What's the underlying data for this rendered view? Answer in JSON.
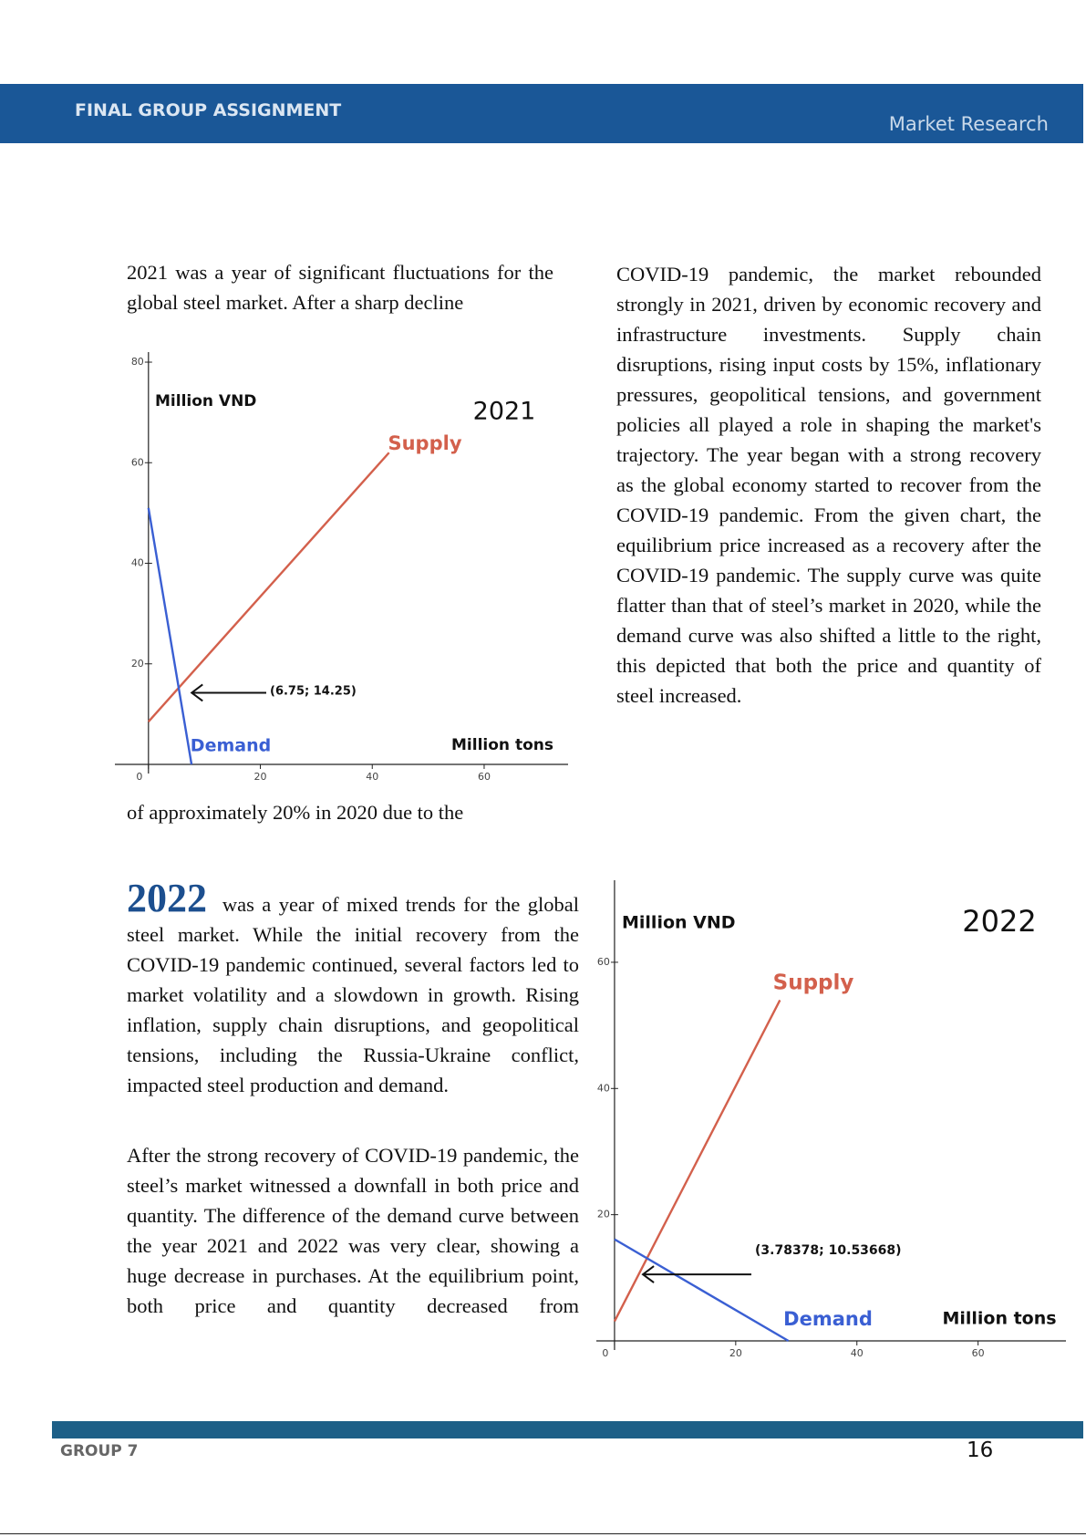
{
  "header": {
    "title": "FINAL GROUP ASSIGNMENT",
    "subtitle": "Market Research"
  },
  "section_2021": {
    "text_top": "2021 was a year of significant fluctuations for the global steel market. After a sharp decline",
    "text_bottom": "of approximately 20% in 2020 due to the",
    "text_right": "COVID-19 pandemic, the market rebounded strongly in 2021, driven by economic recovery and infrastructure investments. Supply chain disruptions, rising input costs by 15%, inflationary pressures, geopolitical tensions, and government policies all played a role in shaping the market's trajectory. The year began with a strong recovery as the global economy started to recover from the COVID-19 pandemic. From the given chart, the equilibrium price increased as a recovery after the COVID-19 pandemic. The supply curve was quite flatter than that of steel’s market in 2020, while the demand curve was also shifted a little to the right, this depicted that both the price and quantity of steel increased."
  },
  "section_2022": {
    "lead": "2022",
    "text": "was a year of mixed trends for the global steel market. While the initial recovery from the COVID-19 pandemic continued, several factors led to market volatility and a slowdown in growth. Rising inflation, supply chain disruptions, and geopolitical tensions, including the Russia-Ukraine conflict, impacted steel production and demand.",
    "text_2": "After the strong recovery of COVID-19 pandemic, the steel’s market witnessed a downfall in both price and quantity. The difference of the demand curve between the year 2021 and 2022 was very clear, showing a huge decrease in purchases. At the equilibrium point, both price and quantity decreased from"
  },
  "chart_data": [
    {
      "type": "line",
      "title": "2021",
      "x_label": "Million tons",
      "y_label": "Million VND",
      "xlim": [
        -6,
        75
      ],
      "ylim": [
        0,
        82
      ],
      "xticks": [
        0,
        20,
        40,
        60
      ],
      "yticks": [
        20,
        40,
        60,
        80
      ],
      "series": [
        {
          "name": "Supply",
          "color": "#d3604c",
          "x": [
            0,
            43
          ],
          "values": [
            8.5,
            62
          ]
        },
        {
          "name": "Demand",
          "color": "#3a5fd3",
          "x": [
            0,
            7.7
          ],
          "values": [
            51,
            0
          ]
        }
      ],
      "annotations": [
        {
          "text": "(6.75; 14.25)",
          "x": 6.75,
          "y": 14.25
        }
      ]
    },
    {
      "type": "line",
      "title": "2022",
      "x_label": "Million tons",
      "y_label": "Million VND",
      "xlim": [
        -3,
        74.5
      ],
      "ylim": [
        0,
        73
      ],
      "xticks": [
        0,
        20,
        40,
        60
      ],
      "yticks": [
        20,
        40,
        60
      ],
      "series": [
        {
          "name": "Supply",
          "color": "#d3604c",
          "x": [
            0,
            27.3
          ],
          "values": [
            3.1,
            54
          ]
        },
        {
          "name": "Demand",
          "color": "#3a5fd3",
          "x": [
            0,
            28.7
          ],
          "values": [
            16.1,
            0
          ]
        }
      ],
      "annotations": [
        {
          "text": "(3.78378; 10.53668)",
          "x": 3.78378,
          "y": 10.53668
        }
      ]
    }
  ],
  "footer": {
    "group": "GROUP 7",
    "page_number": 16
  }
}
